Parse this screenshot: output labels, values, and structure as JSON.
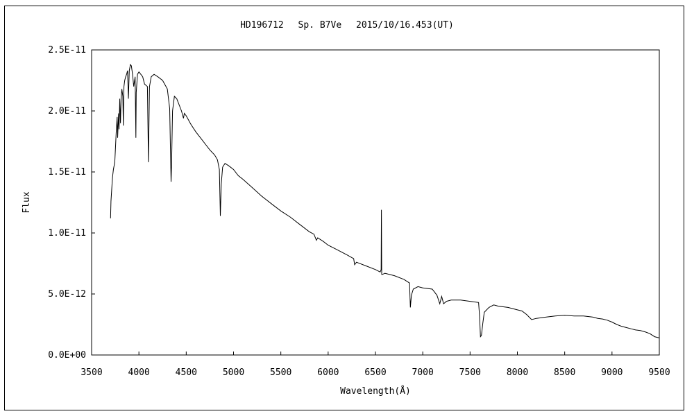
{
  "chart_data": {
    "type": "line",
    "title": "HD196712　 Sp. B7Ve　 2015/10/16.453(UT)",
    "xlabel": "Wavelength(Å)",
    "ylabel": "Flux",
    "xlim": [
      3500,
      9500
    ],
    "ylim": [
      0,
      2.5e-11
    ],
    "xticks": [
      3500,
      4000,
      4500,
      5000,
      5500,
      6000,
      6500,
      7000,
      7500,
      8000,
      8500,
      9000,
      9500
    ],
    "xtick_labels": [
      "3500",
      "4000",
      "4500",
      "5000",
      "5500",
      "6000",
      "6500",
      "7000",
      "7500",
      "8000",
      "8500",
      "9000",
      "9500"
    ],
    "yticks": [
      0,
      5e-12,
      1e-11,
      1.5e-11,
      2e-11,
      2.5e-11
    ],
    "ytick_labels": [
      "0.0E+00",
      "5.0E-12",
      "1.0E-11",
      "1.5E-11",
      "2.0E-11",
      "2.5E-11"
    ],
    "grid": false,
    "legend": "none",
    "line_color": "#000000",
    "series": [
      {
        "x": [
          3700,
          3705,
          3712,
          3720,
          3730,
          3745,
          3760,
          3770,
          3775,
          3785,
          3790,
          3798,
          3805,
          3812,
          3820,
          3830,
          3835,
          3842,
          3850,
          3860,
          3870,
          3880,
          3889,
          3898,
          3910,
          3920,
          3933,
          3945,
          3960,
          3968,
          3972,
          3985,
          4000,
          4020,
          4040,
          4060,
          4090,
          4101,
          4112,
          4130,
          4160,
          4200,
          4250,
          4300,
          4325,
          4340,
          4345,
          4355,
          4375,
          4400,
          4430,
          4450,
          4471,
          4480,
          4500,
          4550,
          4600,
          4650,
          4700,
          4750,
          4800,
          4830,
          4850,
          4861,
          4870,
          4885,
          4910,
          4950,
          5000,
          5050,
          5100,
          5200,
          5300,
          5400,
          5500,
          5600,
          5700,
          5800,
          5850,
          5876,
          5890,
          5950,
          6000,
          6100,
          6200,
          6270,
          6280,
          6300,
          6400,
          6500,
          6550,
          6560,
          6563,
          6566,
          6575,
          6600,
          6700,
          6800,
          6860,
          6869,
          6880,
          6900,
          6950,
          7000,
          7100,
          7150,
          7180,
          7200,
          7220,
          7250,
          7300,
          7400,
          7500,
          7590,
          7600,
          7610,
          7620,
          7635,
          7650,
          7700,
          7750,
          7800,
          7900,
          8000,
          8050,
          8100,
          8150,
          8200,
          8300,
          8400,
          8500,
          8600,
          8700,
          8800,
          8850,
          8900,
          8950,
          9000,
          9050,
          9100,
          9150,
          9200,
          9250,
          9300,
          9350,
          9400,
          9450,
          9500
        ],
        "y": [
          1.12e-11,
          1.26e-11,
          1.35e-11,
          1.45e-11,
          1.52e-11,
          1.58e-11,
          1.82e-11,
          1.95e-11,
          1.78e-11,
          1.98e-11,
          1.85e-11,
          2.1e-11,
          1.9e-11,
          2.1e-11,
          2.18e-11,
          2.12e-11,
          1.88e-11,
          2.2e-11,
          2.25e-11,
          2.28e-11,
          2.3e-11,
          2.33e-11,
          2.1e-11,
          2.33e-11,
          2.38e-11,
          2.37e-11,
          2.3e-11,
          2.2e-11,
          2.28e-11,
          1.78e-11,
          2.15e-11,
          2.3e-11,
          2.32e-11,
          2.3e-11,
          2.28e-11,
          2.22e-11,
          2.2e-11,
          1.58e-11,
          2.2e-11,
          2.28e-11,
          2.3e-11,
          2.28e-11,
          2.25e-11,
          2.18e-11,
          2.02e-11,
          1.42e-11,
          1.55e-11,
          2e-11,
          2.12e-11,
          2.1e-11,
          2.04e-11,
          2e-11,
          1.94e-11,
          1.98e-11,
          1.96e-11,
          1.89e-11,
          1.83e-11,
          1.78e-11,
          1.73e-11,
          1.68e-11,
          1.64e-11,
          1.6e-11,
          1.52e-11,
          1.14e-11,
          1.4e-11,
          1.54e-11,
          1.57e-11,
          1.55e-11,
          1.52e-11,
          1.47e-11,
          1.44e-11,
          1.37e-11,
          1.3e-11,
          1.24e-11,
          1.18e-11,
          1.13e-11,
          1.07e-11,
          1.01e-11,
          9.9e-12,
          9.4e-12,
          9.6e-12,
          9.3e-12,
          9e-12,
          8.6e-12,
          8.2e-12,
          7.9e-12,
          7.4e-12,
          7.6e-12,
          7.3e-12,
          7e-12,
          6.8e-12,
          7e-12,
          1.19e-11,
          6.6e-12,
          6.6e-12,
          6.7e-12,
          6.5e-12,
          6.2e-12,
          5.9e-12,
          3.9e-12,
          4.9e-12,
          5.4e-12,
          5.6e-12,
          5.5e-12,
          5.4e-12,
          4.9e-12,
          4.2e-12,
          4.8e-12,
          4.2e-12,
          4.4e-12,
          4.5e-12,
          4.5e-12,
          4.4e-12,
          4.3e-12,
          3.2e-12,
          1.5e-12,
          1.6e-12,
          2.6e-12,
          3.5e-12,
          3.9e-12,
          4.1e-12,
          4e-12,
          3.9e-12,
          3.7e-12,
          3.6e-12,
          3.3e-12,
          2.9e-12,
          3e-12,
          3.1e-12,
          3.2e-12,
          3.25e-12,
          3.2e-12,
          3.2e-12,
          3.1e-12,
          3e-12,
          2.95e-12,
          2.85e-12,
          2.7e-12,
          2.5e-12,
          2.35e-12,
          2.25e-12,
          2.15e-12,
          2.05e-12,
          2e-12,
          1.9e-12,
          1.75e-12,
          1.5e-12,
          1.4e-12
        ]
      }
    ]
  }
}
